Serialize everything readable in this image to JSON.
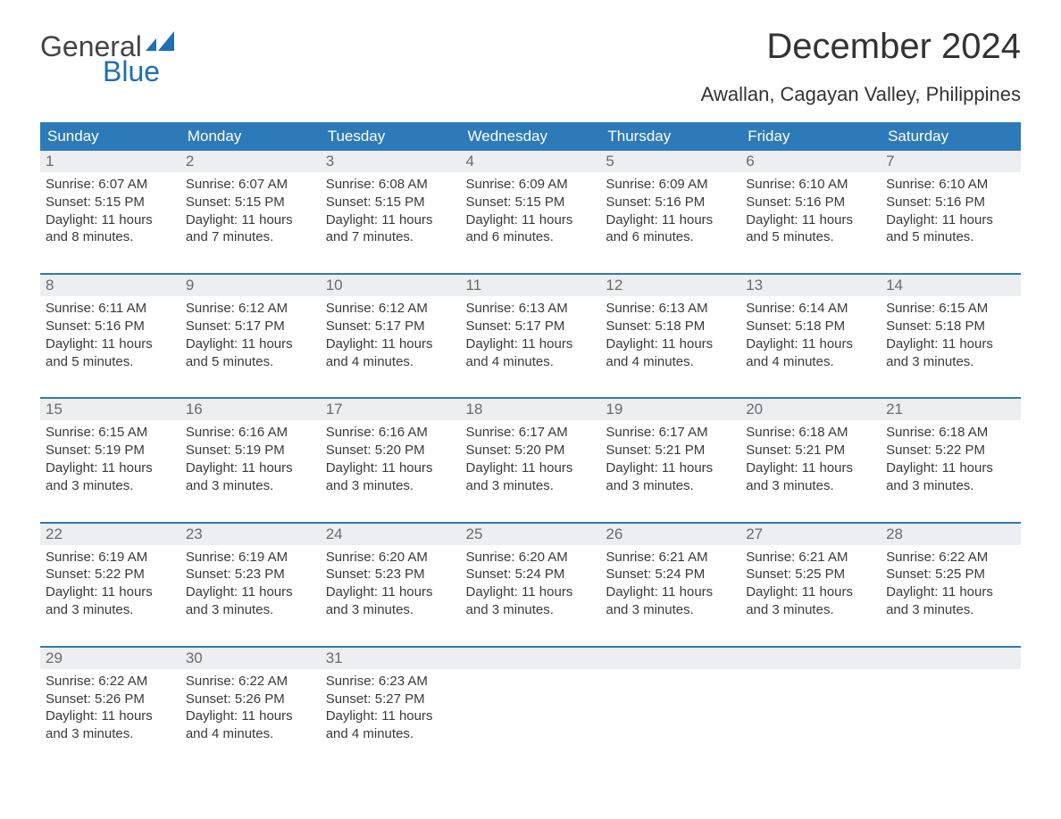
{
  "logo": {
    "word1": "General",
    "word2": "Blue"
  },
  "title": "December 2024",
  "location": "Awallan, Cagayan Valley, Philippines",
  "columns": [
    "Sunday",
    "Monday",
    "Tuesday",
    "Wednesday",
    "Thursday",
    "Friday",
    "Saturday"
  ],
  "colors": {
    "header_bg": "#2d7ab8",
    "header_text": "#ffffff",
    "daynum_bg": "#eceeef",
    "daynum_text": "#6b6b6b",
    "body_text": "#3a3a3a",
    "logo_blue": "#1f6fb2",
    "page_bg": "#ffffff"
  },
  "typography": {
    "title_fontsize": 40,
    "location_fontsize": 22,
    "header_fontsize": 17,
    "daynum_fontsize": 17,
    "cell_fontsize": 15,
    "logo_fontsize": 32
  },
  "weeks": [
    [
      {
        "day": "1",
        "sunrise": "Sunrise: 6:07 AM",
        "sunset": "Sunset: 5:15 PM",
        "dl1": "Daylight: 11 hours",
        "dl2": "and 8 minutes."
      },
      {
        "day": "2",
        "sunrise": "Sunrise: 6:07 AM",
        "sunset": "Sunset: 5:15 PM",
        "dl1": "Daylight: 11 hours",
        "dl2": "and 7 minutes."
      },
      {
        "day": "3",
        "sunrise": "Sunrise: 6:08 AM",
        "sunset": "Sunset: 5:15 PM",
        "dl1": "Daylight: 11 hours",
        "dl2": "and 7 minutes."
      },
      {
        "day": "4",
        "sunrise": "Sunrise: 6:09 AM",
        "sunset": "Sunset: 5:15 PM",
        "dl1": "Daylight: 11 hours",
        "dl2": "and 6 minutes."
      },
      {
        "day": "5",
        "sunrise": "Sunrise: 6:09 AM",
        "sunset": "Sunset: 5:16 PM",
        "dl1": "Daylight: 11 hours",
        "dl2": "and 6 minutes."
      },
      {
        "day": "6",
        "sunrise": "Sunrise: 6:10 AM",
        "sunset": "Sunset: 5:16 PM",
        "dl1": "Daylight: 11 hours",
        "dl2": "and 5 minutes."
      },
      {
        "day": "7",
        "sunrise": "Sunrise: 6:10 AM",
        "sunset": "Sunset: 5:16 PM",
        "dl1": "Daylight: 11 hours",
        "dl2": "and 5 minutes."
      }
    ],
    [
      {
        "day": "8",
        "sunrise": "Sunrise: 6:11 AM",
        "sunset": "Sunset: 5:16 PM",
        "dl1": "Daylight: 11 hours",
        "dl2": "and 5 minutes."
      },
      {
        "day": "9",
        "sunrise": "Sunrise: 6:12 AM",
        "sunset": "Sunset: 5:17 PM",
        "dl1": "Daylight: 11 hours",
        "dl2": "and 5 minutes."
      },
      {
        "day": "10",
        "sunrise": "Sunrise: 6:12 AM",
        "sunset": "Sunset: 5:17 PM",
        "dl1": "Daylight: 11 hours",
        "dl2": "and 4 minutes."
      },
      {
        "day": "11",
        "sunrise": "Sunrise: 6:13 AM",
        "sunset": "Sunset: 5:17 PM",
        "dl1": "Daylight: 11 hours",
        "dl2": "and 4 minutes."
      },
      {
        "day": "12",
        "sunrise": "Sunrise: 6:13 AM",
        "sunset": "Sunset: 5:18 PM",
        "dl1": "Daylight: 11 hours",
        "dl2": "and 4 minutes."
      },
      {
        "day": "13",
        "sunrise": "Sunrise: 6:14 AM",
        "sunset": "Sunset: 5:18 PM",
        "dl1": "Daylight: 11 hours",
        "dl2": "and 4 minutes."
      },
      {
        "day": "14",
        "sunrise": "Sunrise: 6:15 AM",
        "sunset": "Sunset: 5:18 PM",
        "dl1": "Daylight: 11 hours",
        "dl2": "and 3 minutes."
      }
    ],
    [
      {
        "day": "15",
        "sunrise": "Sunrise: 6:15 AM",
        "sunset": "Sunset: 5:19 PM",
        "dl1": "Daylight: 11 hours",
        "dl2": "and 3 minutes."
      },
      {
        "day": "16",
        "sunrise": "Sunrise: 6:16 AM",
        "sunset": "Sunset: 5:19 PM",
        "dl1": "Daylight: 11 hours",
        "dl2": "and 3 minutes."
      },
      {
        "day": "17",
        "sunrise": "Sunrise: 6:16 AM",
        "sunset": "Sunset: 5:20 PM",
        "dl1": "Daylight: 11 hours",
        "dl2": "and 3 minutes."
      },
      {
        "day": "18",
        "sunrise": "Sunrise: 6:17 AM",
        "sunset": "Sunset: 5:20 PM",
        "dl1": "Daylight: 11 hours",
        "dl2": "and 3 minutes."
      },
      {
        "day": "19",
        "sunrise": "Sunrise: 6:17 AM",
        "sunset": "Sunset: 5:21 PM",
        "dl1": "Daylight: 11 hours",
        "dl2": "and 3 minutes."
      },
      {
        "day": "20",
        "sunrise": "Sunrise: 6:18 AM",
        "sunset": "Sunset: 5:21 PM",
        "dl1": "Daylight: 11 hours",
        "dl2": "and 3 minutes."
      },
      {
        "day": "21",
        "sunrise": "Sunrise: 6:18 AM",
        "sunset": "Sunset: 5:22 PM",
        "dl1": "Daylight: 11 hours",
        "dl2": "and 3 minutes."
      }
    ],
    [
      {
        "day": "22",
        "sunrise": "Sunrise: 6:19 AM",
        "sunset": "Sunset: 5:22 PM",
        "dl1": "Daylight: 11 hours",
        "dl2": "and 3 minutes."
      },
      {
        "day": "23",
        "sunrise": "Sunrise: 6:19 AM",
        "sunset": "Sunset: 5:23 PM",
        "dl1": "Daylight: 11 hours",
        "dl2": "and 3 minutes."
      },
      {
        "day": "24",
        "sunrise": "Sunrise: 6:20 AM",
        "sunset": "Sunset: 5:23 PM",
        "dl1": "Daylight: 11 hours",
        "dl2": "and 3 minutes."
      },
      {
        "day": "25",
        "sunrise": "Sunrise: 6:20 AM",
        "sunset": "Sunset: 5:24 PM",
        "dl1": "Daylight: 11 hours",
        "dl2": "and 3 minutes."
      },
      {
        "day": "26",
        "sunrise": "Sunrise: 6:21 AM",
        "sunset": "Sunset: 5:24 PM",
        "dl1": "Daylight: 11 hours",
        "dl2": "and 3 minutes."
      },
      {
        "day": "27",
        "sunrise": "Sunrise: 6:21 AM",
        "sunset": "Sunset: 5:25 PM",
        "dl1": "Daylight: 11 hours",
        "dl2": "and 3 minutes."
      },
      {
        "day": "28",
        "sunrise": "Sunrise: 6:22 AM",
        "sunset": "Sunset: 5:25 PM",
        "dl1": "Daylight: 11 hours",
        "dl2": "and 3 minutes."
      }
    ],
    [
      {
        "day": "29",
        "sunrise": "Sunrise: 6:22 AM",
        "sunset": "Sunset: 5:26 PM",
        "dl1": "Daylight: 11 hours",
        "dl2": "and 3 minutes."
      },
      {
        "day": "30",
        "sunrise": "Sunrise: 6:22 AM",
        "sunset": "Sunset: 5:26 PM",
        "dl1": "Daylight: 11 hours",
        "dl2": "and 4 minutes."
      },
      {
        "day": "31",
        "sunrise": "Sunrise: 6:23 AM",
        "sunset": "Sunset: 5:27 PM",
        "dl1": "Daylight: 11 hours",
        "dl2": "and 4 minutes."
      },
      null,
      null,
      null,
      null
    ]
  ]
}
